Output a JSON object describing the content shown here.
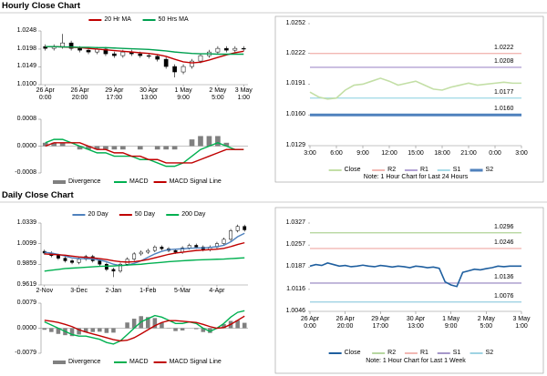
{
  "sections": [
    {
      "title": "Hourly Close Chart"
    },
    {
      "title": "Daily Close Chart"
    }
  ],
  "chart_data": [
    {
      "type": "candlestick",
      "categories": [
        "26 Apr\n0:00",
        null,
        null,
        null,
        "26 Apr\n20:00",
        null,
        null,
        null,
        "29 Apr\n17:00",
        null,
        null,
        null,
        "30 Apr\n13:00",
        null,
        null,
        null,
        "1 May\n9:00",
        null,
        null,
        null,
        "2 May\n5:00",
        null,
        null,
        "3 May\n1:00"
      ],
      "open": [
        1.0205,
        1.02,
        1.0205,
        1.0215,
        1.02,
        1.0195,
        1.019,
        1.0198,
        1.0185,
        1.018,
        1.019,
        1.0185,
        1.018,
        1.0178,
        1.017,
        1.015,
        1.0135,
        1.015,
        1.0165,
        1.018,
        1.019,
        1.02,
        1.0195,
        1.02
      ],
      "high": [
        1.0211,
        1.0211,
        1.024,
        1.0221,
        1.0206,
        1.0201,
        1.0204,
        1.0204,
        1.0191,
        1.0196,
        1.0196,
        1.0191,
        1.0186,
        1.0184,
        1.0176,
        1.0156,
        1.0156,
        1.0171,
        1.0186,
        1.0196,
        1.0206,
        1.0206,
        1.0206,
        1.0206
      ],
      "low": [
        1.0194,
        1.0194,
        1.0199,
        1.0194,
        1.0189,
        1.0184,
        1.0184,
        1.0179,
        1.0174,
        1.0174,
        1.0179,
        1.0174,
        1.0172,
        1.0164,
        1.0144,
        1.012,
        1.0129,
        1.0144,
        1.0159,
        1.0174,
        1.0184,
        1.0189,
        1.0189,
        1.0192
      ],
      "close": [
        1.02,
        1.0205,
        1.0215,
        1.02,
        1.0195,
        1.019,
        1.0198,
        1.0185,
        1.018,
        1.019,
        1.0185,
        1.018,
        1.0178,
        1.017,
        1.015,
        1.0135,
        1.015,
        1.0165,
        1.018,
        1.019,
        1.02,
        1.0195,
        1.02,
        1.0198
      ],
      "up_color": "#ffffff",
      "down_color": "#000000",
      "series": [
        {
          "name": "20 Hr MA",
          "color": "#c00000",
          "values": [
            1.0205,
            1.0205,
            1.0204,
            1.0203,
            1.0202,
            1.02,
            1.0198,
            1.0196,
            1.0194,
            1.0192,
            1.019,
            1.0188,
            1.0186,
            1.0183,
            1.0178,
            1.017,
            1.0163,
            1.016,
            1.0162,
            1.0168,
            1.0175,
            1.0182,
            1.0188,
            1.0192
          ]
        },
        {
          "name": "50 Hrs MA",
          "color": "#00a050",
          "values": [
            1.0205,
            1.0205,
            1.0204,
            1.0204,
            1.0203,
            1.0203,
            1.0202,
            1.0202,
            1.0201,
            1.02,
            1.0199,
            1.0198,
            1.0197,
            1.0195,
            1.0193,
            1.019,
            1.0188,
            1.0186,
            1.0185,
            1.0185,
            1.0184,
            1.0184,
            1.0184,
            1.0184
          ]
        }
      ],
      "ylim": [
        1.01,
        1.0248
      ],
      "yticks": [
        {
          "value": 1.01,
          "label": "1.0100"
        },
        1.0149,
        1.0198,
        1.0248
      ]
    },
    {
      "type": "combo",
      "series": [
        {
          "name": "Divergence",
          "type": "bar",
          "color": "#808080",
          "values": [
            0.0001,
            0.0001,
            0.0001,
            0,
            -0.0001,
            -0.0001,
            -0.0001,
            -0.0001,
            -0.0001,
            -0.0001,
            0,
            -0.0001,
            0,
            -0.0001,
            -0.0001,
            -0.0001,
            0,
            0.0002,
            0.0003,
            0.0003,
            0.0003,
            0.0001,
            0,
            0
          ]
        },
        {
          "name": "MACD",
          "type": "line",
          "color": "#00b050",
          "values": [
            0.0001,
            0.0002,
            0.0002,
            0.0001,
            0,
            -0.0001,
            -0.0002,
            -0.0002,
            -0.0003,
            -0.0003,
            -0.0003,
            -0.0004,
            -0.0004,
            -0.0005,
            -0.0006,
            -0.0006,
            -0.0005,
            -0.0003,
            -0.0001,
            0,
            0.0001,
            0,
            -0.0001,
            -0.0001
          ]
        },
        {
          "name": "MACD Signal Line",
          "type": "line",
          "color": "#c00000",
          "values": [
            0,
            0.0001,
            0.0001,
            0.0001,
            0.0001,
            0,
            -0.0001,
            -0.0001,
            -0.0002,
            -0.0002,
            -0.0003,
            -0.0003,
            -0.0004,
            -0.0004,
            -0.0005,
            -0.0005,
            -0.0005,
            -0.0005,
            -0.0004,
            -0.0003,
            -0.0002,
            -0.0001,
            -0.0001,
            -0.0001
          ]
        }
      ],
      "ylim": [
        -0.0008,
        0.0008
      ],
      "yticks": [
        0.0008,
        {
          "value": 0,
          "label": "0.0000"
        },
        -0.0008
      ]
    },
    {
      "type": "line",
      "x": [
        0,
        1,
        2,
        3,
        4,
        5,
        6,
        7,
        8,
        9,
        10,
        11,
        12,
        13,
        14,
        15,
        16,
        17,
        18,
        19,
        20,
        21,
        22,
        23,
        24
      ],
      "series": [
        {
          "name": "Close",
          "color": "#c3dfa6",
          "values": [
            1.0183,
            1.0178,
            1.0176,
            1.0177,
            1.0185,
            1.019,
            1.0191,
            1.0194,
            1.0197,
            1.0194,
            1.019,
            1.0192,
            1.0194,
            1.019,
            1.0186,
            1.0185,
            1.0188,
            1.019,
            1.0192,
            1.019,
            1.0191,
            1.0192,
            1.0193,
            1.0192,
            1.0192
          ]
        },
        {
          "name": "R2",
          "color": "#f2b8b3",
          "level": 1.0222
        },
        {
          "name": "R1",
          "color": "#b3a2d4",
          "level": 1.0208
        },
        {
          "name": "S1",
          "color": "#a7dbe8",
          "level": 1.0177
        },
        {
          "name": "S2",
          "color": "#4f81bd",
          "level": 1.016,
          "level_label": "1.0160",
          "line_width": 3
        }
      ],
      "xlim": [
        0,
        24
      ],
      "xticks": [
        {
          "value": 0,
          "label": "3:00"
        },
        {
          "value": 3,
          "label": "6:00"
        },
        {
          "value": 6,
          "label": "9:00"
        },
        {
          "value": 9,
          "label": "12:00"
        },
        {
          "value": 12,
          "label": "15:00"
        },
        {
          "value": 15,
          "label": "18:00"
        },
        {
          "value": 18,
          "label": "21:00"
        },
        {
          "value": 21,
          "label": "0:00"
        },
        {
          "value": 24,
          "label": "3:00"
        }
      ],
      "ylim": [
        1.0129,
        1.0252
      ],
      "yticks": [
        1.0129,
        {
          "value": 1.016,
          "label": "1.0160"
        },
        1.0191,
        1.0222,
        1.0252
      ],
      "note": "Note: 1 Hour Chart for Last 24 Hours"
    },
    {
      "type": "candlestick",
      "categories": [
        "2-Nov",
        null,
        null,
        null,
        null,
        "3-Dec",
        null,
        null,
        null,
        null,
        "2-Jan",
        null,
        null,
        null,
        null,
        "1-Feb",
        null,
        null,
        null,
        null,
        "5-Mar",
        null,
        null,
        null,
        null,
        "4-Apr",
        null,
        null,
        null,
        null
      ],
      "open": [
        1.001,
        0.999,
        0.996,
        0.993,
        0.99,
        0.988,
        0.992,
        0.995,
        0.99,
        0.986,
        0.98,
        0.978,
        0.986,
        0.992,
        0.998,
        1.0,
        1.002,
        1.006,
        1.004,
        1.002,
        1.0,
        1.005,
        1.008,
        1.006,
        1.003,
        1.006,
        1.01,
        1.015,
        1.025,
        1.03
      ],
      "high": [
        1.003,
        1.001,
        0.998,
        0.995,
        0.992,
        0.994,
        0.997,
        0.997,
        0.992,
        0.988,
        0.982,
        0.988,
        0.994,
        1.0,
        1.002,
        1.004,
        1.008,
        1.008,
        1.006,
        1.004,
        1.007,
        1.01,
        1.01,
        1.008,
        1.008,
        1.012,
        1.017,
        1.027,
        1.032,
        1.032
      ],
      "low": [
        0.997,
        0.994,
        0.991,
        0.988,
        0.986,
        0.986,
        0.99,
        0.988,
        0.984,
        0.978,
        0.971,
        0.976,
        0.984,
        0.99,
        0.996,
        0.998,
        1.0,
        1.002,
        1.0,
        0.998,
        0.998,
        1.003,
        1.004,
        1.001,
        1.001,
        1.004,
        1.008,
        1.013,
        1.023,
        1.024
      ],
      "close": [
        0.999,
        0.996,
        0.993,
        0.99,
        0.988,
        0.992,
        0.995,
        0.99,
        0.986,
        0.98,
        0.978,
        0.986,
        0.992,
        0.998,
        1.0,
        1.002,
        1.006,
        1.004,
        1.002,
        1.0,
        1.005,
        1.008,
        1.006,
        1.003,
        1.006,
        1.01,
        1.015,
        1.025,
        1.03,
        1.026
      ],
      "up_color": "#ffffff",
      "down_color": "#000000",
      "series": [
        {
          "name": "20 Day",
          "color": "#4f81bd",
          "values": [
            1.0,
            0.999,
            0.9975,
            0.9955,
            0.9935,
            0.9925,
            0.9925,
            0.992,
            0.991,
            0.989,
            0.986,
            0.9845,
            0.985,
            0.987,
            0.99,
            0.994,
            0.998,
            1.001,
            1.003,
            1.0035,
            1.004,
            1.0045,
            1.005,
            1.005,
            1.0055,
            1.0065,
            1.008,
            1.012,
            1.018,
            1.022
          ]
        },
        {
          "name": "50 Day",
          "color": "#c00000",
          "values": [
            0.998,
            0.9975,
            0.997,
            0.9965,
            0.9955,
            0.9945,
            0.994,
            0.9935,
            0.9925,
            0.9915,
            0.99,
            0.989,
            0.9885,
            0.989,
            0.99,
            0.9915,
            0.9935,
            0.9955,
            0.9975,
            0.999,
            1.0,
            1.001,
            1.002,
            1.0025,
            1.003,
            1.0035,
            1.0045,
            1.0065,
            1.009,
            1.011
          ]
        },
        {
          "name": "200 Day",
          "color": "#00b050",
          "values": [
            0.978,
            0.979,
            0.98,
            0.981,
            0.9815,
            0.982,
            0.9825,
            0.983,
            0.9835,
            0.9838,
            0.984,
            0.9845,
            0.985,
            0.9855,
            0.986,
            0.9868,
            0.9875,
            0.9882,
            0.989,
            0.9895,
            0.99,
            0.9905,
            0.991,
            0.9912,
            0.9915,
            0.9918,
            0.992,
            0.9925,
            0.993,
            0.9935
          ]
        }
      ],
      "ylim": [
        0.9619,
        1.0339
      ],
      "yticks": [
        0.9619,
        0.9859,
        1.0099,
        1.0339
      ]
    },
    {
      "type": "combo",
      "series": [
        {
          "name": "Divergence",
          "type": "bar",
          "color": "#808080",
          "values": [
            -0.0005,
            -0.0012,
            -0.0018,
            -0.0022,
            -0.0025,
            -0.002,
            -0.0013,
            -0.0012,
            -0.0011,
            -0.0015,
            -0.0014,
            0,
            0.0018,
            0.003,
            0.0038,
            0.0035,
            0.0032,
            0.0017,
            0.0001,
            -0.0009,
            -0.0007,
            0,
            -0.0003,
            -0.0012,
            -0.0015,
            0,
            0.0013,
            0.0023,
            0.0025,
            0.0017
          ]
        },
        {
          "name": "MACD",
          "type": "line",
          "color": "#00b050",
          "values": [
            0.002,
            0.001,
            0,
            -0.001,
            -0.002,
            -0.0025,
            -0.0025,
            -0.003,
            -0.0035,
            -0.0045,
            -0.005,
            -0.004,
            -0.002,
            0,
            0.002,
            0.003,
            0.004,
            0.0035,
            0.0025,
            0.0015,
            0.0015,
            0.002,
            0.0015,
            0,
            -0.001,
            0,
            0.0015,
            0.0035,
            0.005,
            0.0055
          ]
        },
        {
          "name": "MACD Signal Line",
          "type": "line",
          "color": "#c00000",
          "values": [
            0.0025,
            0.0022,
            0.0018,
            0.0012,
            0.0005,
            -0.0005,
            -0.0012,
            -0.0018,
            -0.0024,
            -0.003,
            -0.0036,
            -0.004,
            -0.0038,
            -0.003,
            -0.0018,
            -0.0005,
            0.0008,
            0.0018,
            0.0024,
            0.0024,
            0.0022,
            0.002,
            0.0018,
            0.0012,
            0.0005,
            0,
            0.0002,
            0.0012,
            0.0025,
            0.0038
          ]
        }
      ],
      "ylim": [
        -0.0079,
        0.0079
      ],
      "yticks": [
        0.0079,
        {
          "value": 0,
          "label": "0.0000"
        },
        -0.0079
      ]
    },
    {
      "type": "line",
      "x": [
        0,
        1,
        2,
        3,
        4,
        5,
        6,
        7,
        8,
        9,
        10,
        11,
        12,
        13,
        14,
        15,
        16,
        17,
        18,
        19,
        20,
        21,
        22,
        23,
        24,
        25,
        26,
        27,
        28,
        29,
        30,
        31,
        32,
        33,
        34,
        35,
        36
      ],
      "series": [
        {
          "name": "Close",
          "color": "#1f5f9f",
          "values": [
            1.019,
            1.0195,
            1.0192,
            1.02,
            1.0195,
            1.019,
            1.0192,
            1.0188,
            1.019,
            1.0193,
            1.019,
            1.0188,
            1.0192,
            1.019,
            1.0187,
            1.019,
            1.0188,
            1.0185,
            1.019,
            1.0188,
            1.0185,
            1.0187,
            1.0183,
            1.014,
            1.013,
            1.0125,
            1.017,
            1.0175,
            1.018,
            1.0178,
            1.0182,
            1.0185,
            1.019,
            1.0188,
            1.019,
            1.019,
            1.019
          ]
        },
        {
          "name": "R2",
          "color": "#b7d7a0",
          "level": 1.0296
        },
        {
          "name": "R1",
          "color": "#f2b8b3",
          "level": 1.0246
        },
        {
          "name": "S1",
          "color": "#a597c9",
          "level": 1.0136
        },
        {
          "name": "S2",
          "color": "#9fd3e3",
          "level": 1.0076
        }
      ],
      "xlim": [
        0,
        36
      ],
      "xticks": [
        {
          "value": 0,
          "label": "26 Apr\n0:00"
        },
        {
          "value": 6,
          "label": "26 Apr\n20:00"
        },
        {
          "value": 12,
          "label": "29 Apr\n17:00"
        },
        {
          "value": 18,
          "label": "30 Apr\n13:00"
        },
        {
          "value": 24,
          "label": "1 May\n9:00"
        },
        {
          "value": 30,
          "label": "2 May\n5:00"
        },
        {
          "value": 36,
          "label": "3 May\n1:00"
        }
      ],
      "ylim": [
        1.0046,
        1.0327
      ],
      "yticks": [
        1.0046,
        1.0116,
        1.0187,
        1.0257,
        1.0327
      ],
      "note": "Note: 1 Hour Chart for Last 1 Week"
    }
  ]
}
